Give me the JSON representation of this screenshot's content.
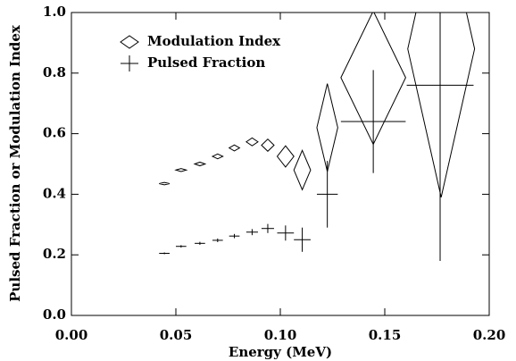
{
  "chart_data": {
    "type": "errorbar",
    "xlabel": "Energy (MeV)",
    "ylabel": "Pulsed Fraction  or  Modulation Index",
    "xlim": [
      0,
      0.2
    ],
    "ylim": [
      0,
      1
    ],
    "xticks": [
      {
        "value": 0,
        "label": "0.00"
      },
      0.05,
      {
        "value": 0.1,
        "label": "0.10"
      },
      0.15,
      {
        "value": 0.2,
        "label": "0.20"
      }
    ],
    "yticks": [
      {
        "value": 0,
        "label": "0.0"
      },
      0.2,
      0.4,
      0.6,
      0.8,
      {
        "value": 1,
        "label": "1.0"
      }
    ],
    "legend": "upper left",
    "series": [
      {
        "name": "Modulation Index",
        "marker": "diamond",
        "color": "#000000",
        "x": [
          0.0445,
          0.0525,
          0.0615,
          0.07,
          0.078,
          0.0865,
          0.094,
          0.1025,
          0.1105,
          0.1225,
          0.1445,
          0.177
        ],
        "xerr": [
          0.0025,
          0.0025,
          0.0025,
          0.0025,
          0.0025,
          0.0028,
          0.003,
          0.004,
          0.004,
          0.005,
          0.0155,
          0.016
        ],
        "values": [
          0.435,
          0.48,
          0.5,
          0.525,
          0.553,
          0.573,
          0.562,
          0.525,
          0.48,
          0.62,
          0.785,
          0.88
        ],
        "yerr": [
          0.004,
          0.005,
          0.006,
          0.008,
          0.01,
          0.013,
          0.02,
          0.035,
          0.065,
          0.145,
          0.22,
          0.49
        ]
      },
      {
        "name": "Pulsed Fraction",
        "marker": "cross",
        "color": "#000000",
        "x": [
          0.0445,
          0.0525,
          0.0615,
          0.07,
          0.078,
          0.0865,
          0.094,
          0.1025,
          0.1105,
          0.1225,
          0.1445,
          0.1765
        ],
        "xerr": [
          0.0025,
          0.0025,
          0.0025,
          0.0025,
          0.0025,
          0.0028,
          0.003,
          0.004,
          0.004,
          0.005,
          0.0155,
          0.016
        ],
        "values": [
          0.205,
          0.228,
          0.238,
          0.248,
          0.262,
          0.275,
          0.287,
          0.272,
          0.25,
          0.4,
          0.64,
          0.76
        ],
        "yerr": [
          0.003,
          0.004,
          0.005,
          0.006,
          0.007,
          0.01,
          0.015,
          0.025,
          0.04,
          0.11,
          0.17,
          0.58
        ]
      }
    ]
  }
}
